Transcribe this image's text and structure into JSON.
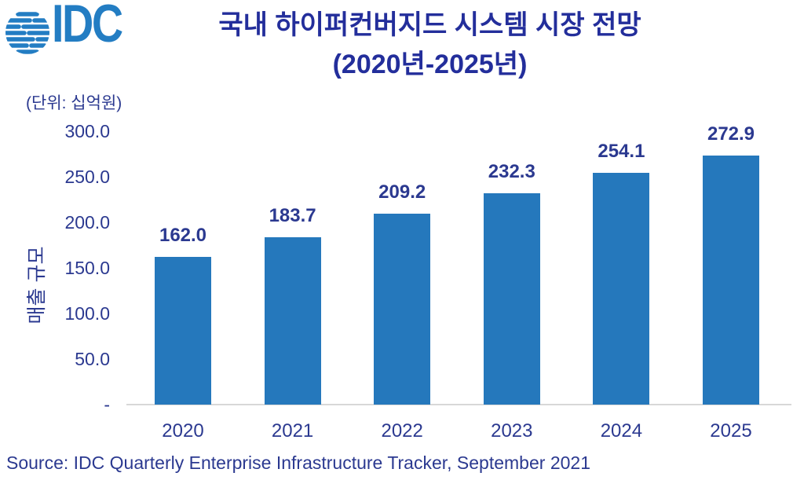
{
  "logo": {
    "text": "IDC",
    "color": "#237DC3"
  },
  "title": {
    "line1": "국내 하이퍼컨버지드 시스템 시장 전망",
    "line2": "(2020년-2025년)",
    "color": "#232E9B"
  },
  "unit_label": "(단위: 십억원)",
  "source": "Source: IDC Quarterly Enterprise Infrastructure Tracker, September 2021",
  "colors": {
    "bar": "#2578BC",
    "text": "#2B3990",
    "axis_line": "#D8D8D8"
  },
  "chart_data": {
    "type": "bar",
    "title": "국내 하이퍼컨버지드 시스템 시장 전망 (2020년-2025년)",
    "categories": [
      "2020",
      "2021",
      "2022",
      "2023",
      "2024",
      "2025"
    ],
    "values": [
      162.0,
      183.7,
      209.2,
      232.3,
      254.1,
      272.9
    ],
    "value_labels": [
      "162.0",
      "183.7",
      "209.2",
      "232.3",
      "254.1",
      "272.9"
    ],
    "xlabel": "",
    "ylabel": "매출 규모",
    "unit": "십억원",
    "ylim": [
      0,
      300
    ],
    "ytick_values": [
      300,
      250,
      200,
      150,
      100,
      50,
      0
    ],
    "ytick_labels": [
      "300.0",
      "250.0",
      "200.0",
      "150.0",
      "100.0",
      "50.0",
      "-"
    ],
    "grid": false,
    "legend": false,
    "bar_color": "#2578BC",
    "label_color": "#2B3990"
  }
}
